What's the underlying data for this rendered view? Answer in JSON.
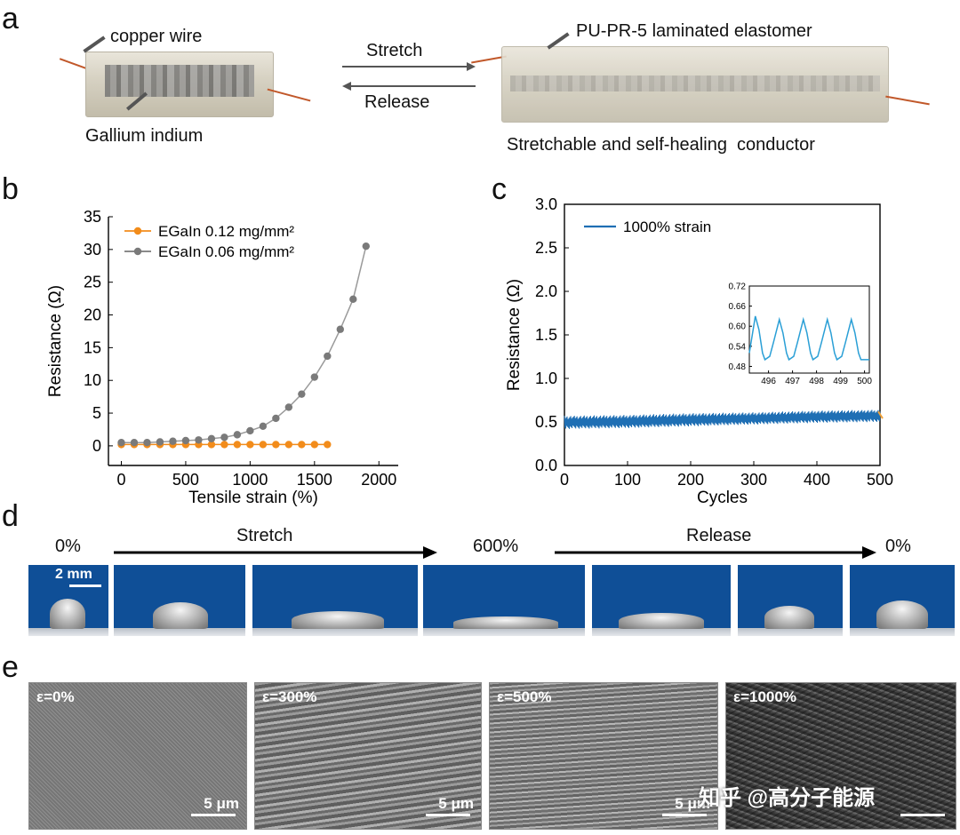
{
  "panel_labels": {
    "a": "a",
    "b": "b",
    "c": "c",
    "d": "d",
    "e": "e"
  },
  "panel_a": {
    "copper_wire": "copper wire",
    "gallium_indium": "Gallium indium",
    "stretch": "Stretch",
    "release": "Release",
    "laminated": "PU-PR-5 laminated elastomer",
    "conductor": "Stretchable and self-healing  conductor"
  },
  "chart_data": [
    {
      "type": "line",
      "ylabel": "Resistance (Ω)",
      "xlabel": "Tensile strain (%)",
      "xlim": [
        -100,
        2150
      ],
      "ylim": [
        -3,
        35
      ],
      "xticks": [
        0,
        500,
        1000,
        1500,
        2000
      ],
      "yticks": [
        0,
        5,
        10,
        15,
        20,
        25,
        30,
        35
      ],
      "legend_placement": "top-left",
      "grid": false,
      "series": [
        {
          "name": "EGaIn 0.12 mg/mm²",
          "color": "#f28c1b",
          "x": [
            0,
            100,
            200,
            300,
            400,
            500,
            600,
            700,
            800,
            900,
            1000,
            1100,
            1200,
            1300,
            1400,
            1500,
            1600
          ],
          "y": [
            0.2,
            0.2,
            0.2,
            0.2,
            0.2,
            0.2,
            0.2,
            0.2,
            0.2,
            0.2,
            0.2,
            0.2,
            0.2,
            0.2,
            0.2,
            0.2,
            0.2
          ]
        },
        {
          "name": "EGaIn 0.06 mg/mm²",
          "color": "#7a7a7a",
          "x": [
            0,
            100,
            200,
            300,
            400,
            500,
            600,
            700,
            800,
            900,
            1000,
            1100,
            1200,
            1300,
            1400,
            1500,
            1600,
            1700,
            1800,
            1900
          ],
          "y": [
            0.5,
            0.5,
            0.5,
            0.6,
            0.7,
            0.8,
            0.9,
            1.1,
            1.3,
            1.7,
            2.3,
            3.0,
            4.2,
            5.9,
            7.9,
            10.5,
            13.7,
            17.8,
            22.4,
            30.5
          ]
        }
      ]
    },
    {
      "type": "line",
      "ylabel": "Resistance (Ω)",
      "xlabel": "Cycles",
      "xlim": [
        0,
        500
      ],
      "ylim": [
        0,
        3.0
      ],
      "xticks": [
        0,
        100,
        200,
        300,
        400,
        500
      ],
      "yticks": [
        "0.0",
        "0.5",
        "1.0",
        "1.5",
        "2.0",
        "2.5",
        "3.0"
      ],
      "legend_placement": "top-left",
      "grid": false,
      "series": [
        {
          "name": "1000% strain",
          "color": "#1f6fb4",
          "x": [
            0,
            100,
            200,
            300,
            400,
            500
          ],
          "y_min": [
            0.42,
            0.43,
            0.45,
            0.47,
            0.49,
            0.5
          ],
          "y_max": [
            0.57,
            0.58,
            0.6,
            0.61,
            0.63,
            0.64
          ]
        }
      ],
      "inset": {
        "xlim": [
          495.2,
          500.2
        ],
        "ylim": [
          0.46,
          0.72
        ],
        "xticks": [
          496,
          497,
          498,
          499,
          500
        ],
        "yticks": [
          "0.48",
          "0.54",
          "0.60",
          "0.66",
          "0.72"
        ],
        "color": "#2a9fd6",
        "x": [
          495.2,
          495.45,
          495.6,
          495.75,
          495.85,
          496.05,
          496.2,
          496.45,
          496.6,
          496.75,
          496.85,
          497.05,
          497.2,
          497.45,
          497.6,
          497.75,
          497.85,
          498.05,
          498.2,
          498.45,
          498.6,
          498.75,
          498.85,
          499.05,
          499.2,
          499.45,
          499.6,
          499.75,
          499.85,
          500.05,
          500.2
        ],
        "y": [
          0.52,
          0.63,
          0.59,
          0.52,
          0.5,
          0.51,
          0.55,
          0.62,
          0.58,
          0.52,
          0.5,
          0.51,
          0.55,
          0.62,
          0.58,
          0.52,
          0.5,
          0.51,
          0.55,
          0.62,
          0.58,
          0.52,
          0.5,
          0.51,
          0.55,
          0.62,
          0.58,
          0.52,
          0.5,
          0.5,
          0.5
        ]
      }
    }
  ],
  "panel_d": {
    "strain_0_left": "0%",
    "stretch": "Stretch",
    "strain_600": "600%",
    "release": "Release",
    "strain_0_right": "0%",
    "scale_bar": "2 mm"
  },
  "panel_e": {
    "images": [
      {
        "label": "ε=0%",
        "scale": "5 μm"
      },
      {
        "label": "ε=300%",
        "scale": "5 μm"
      },
      {
        "label": "ε=500%",
        "scale": "5 μm"
      },
      {
        "label": "ε=1000%",
        "scale": ""
      }
    ],
    "watermark": "知乎 @高分子能源"
  },
  "colors": {
    "orange": "#f28c1b",
    "gray": "#7a7a7a",
    "blue": "#1f6fb4",
    "photo_blue": "#0f4f97"
  }
}
